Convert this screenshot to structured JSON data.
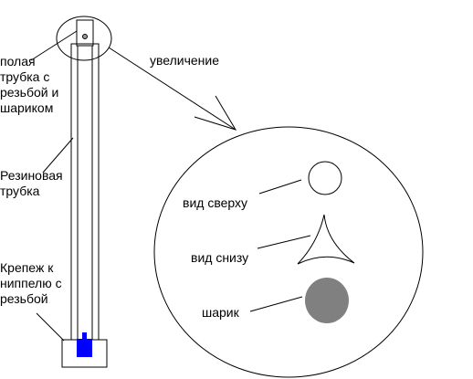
{
  "labels": {
    "tube_hollow": [
      "полая",
      "трубка с",
      "резьбой и",
      "шариком"
    ],
    "magnification": "увеличение",
    "rubber_tube": [
      "Резиновая",
      "трубка"
    ],
    "fastener": [
      "Крепеж к",
      "ниппелю с",
      "резьбой"
    ],
    "top_view": "вид сверху",
    "bottom_view": "вид снизу",
    "ball": "шарик"
  },
  "colors": {
    "stroke": "#000000",
    "background": "#ffffff",
    "nipple": "#0000ff",
    "ball_fill": "#808080"
  }
}
